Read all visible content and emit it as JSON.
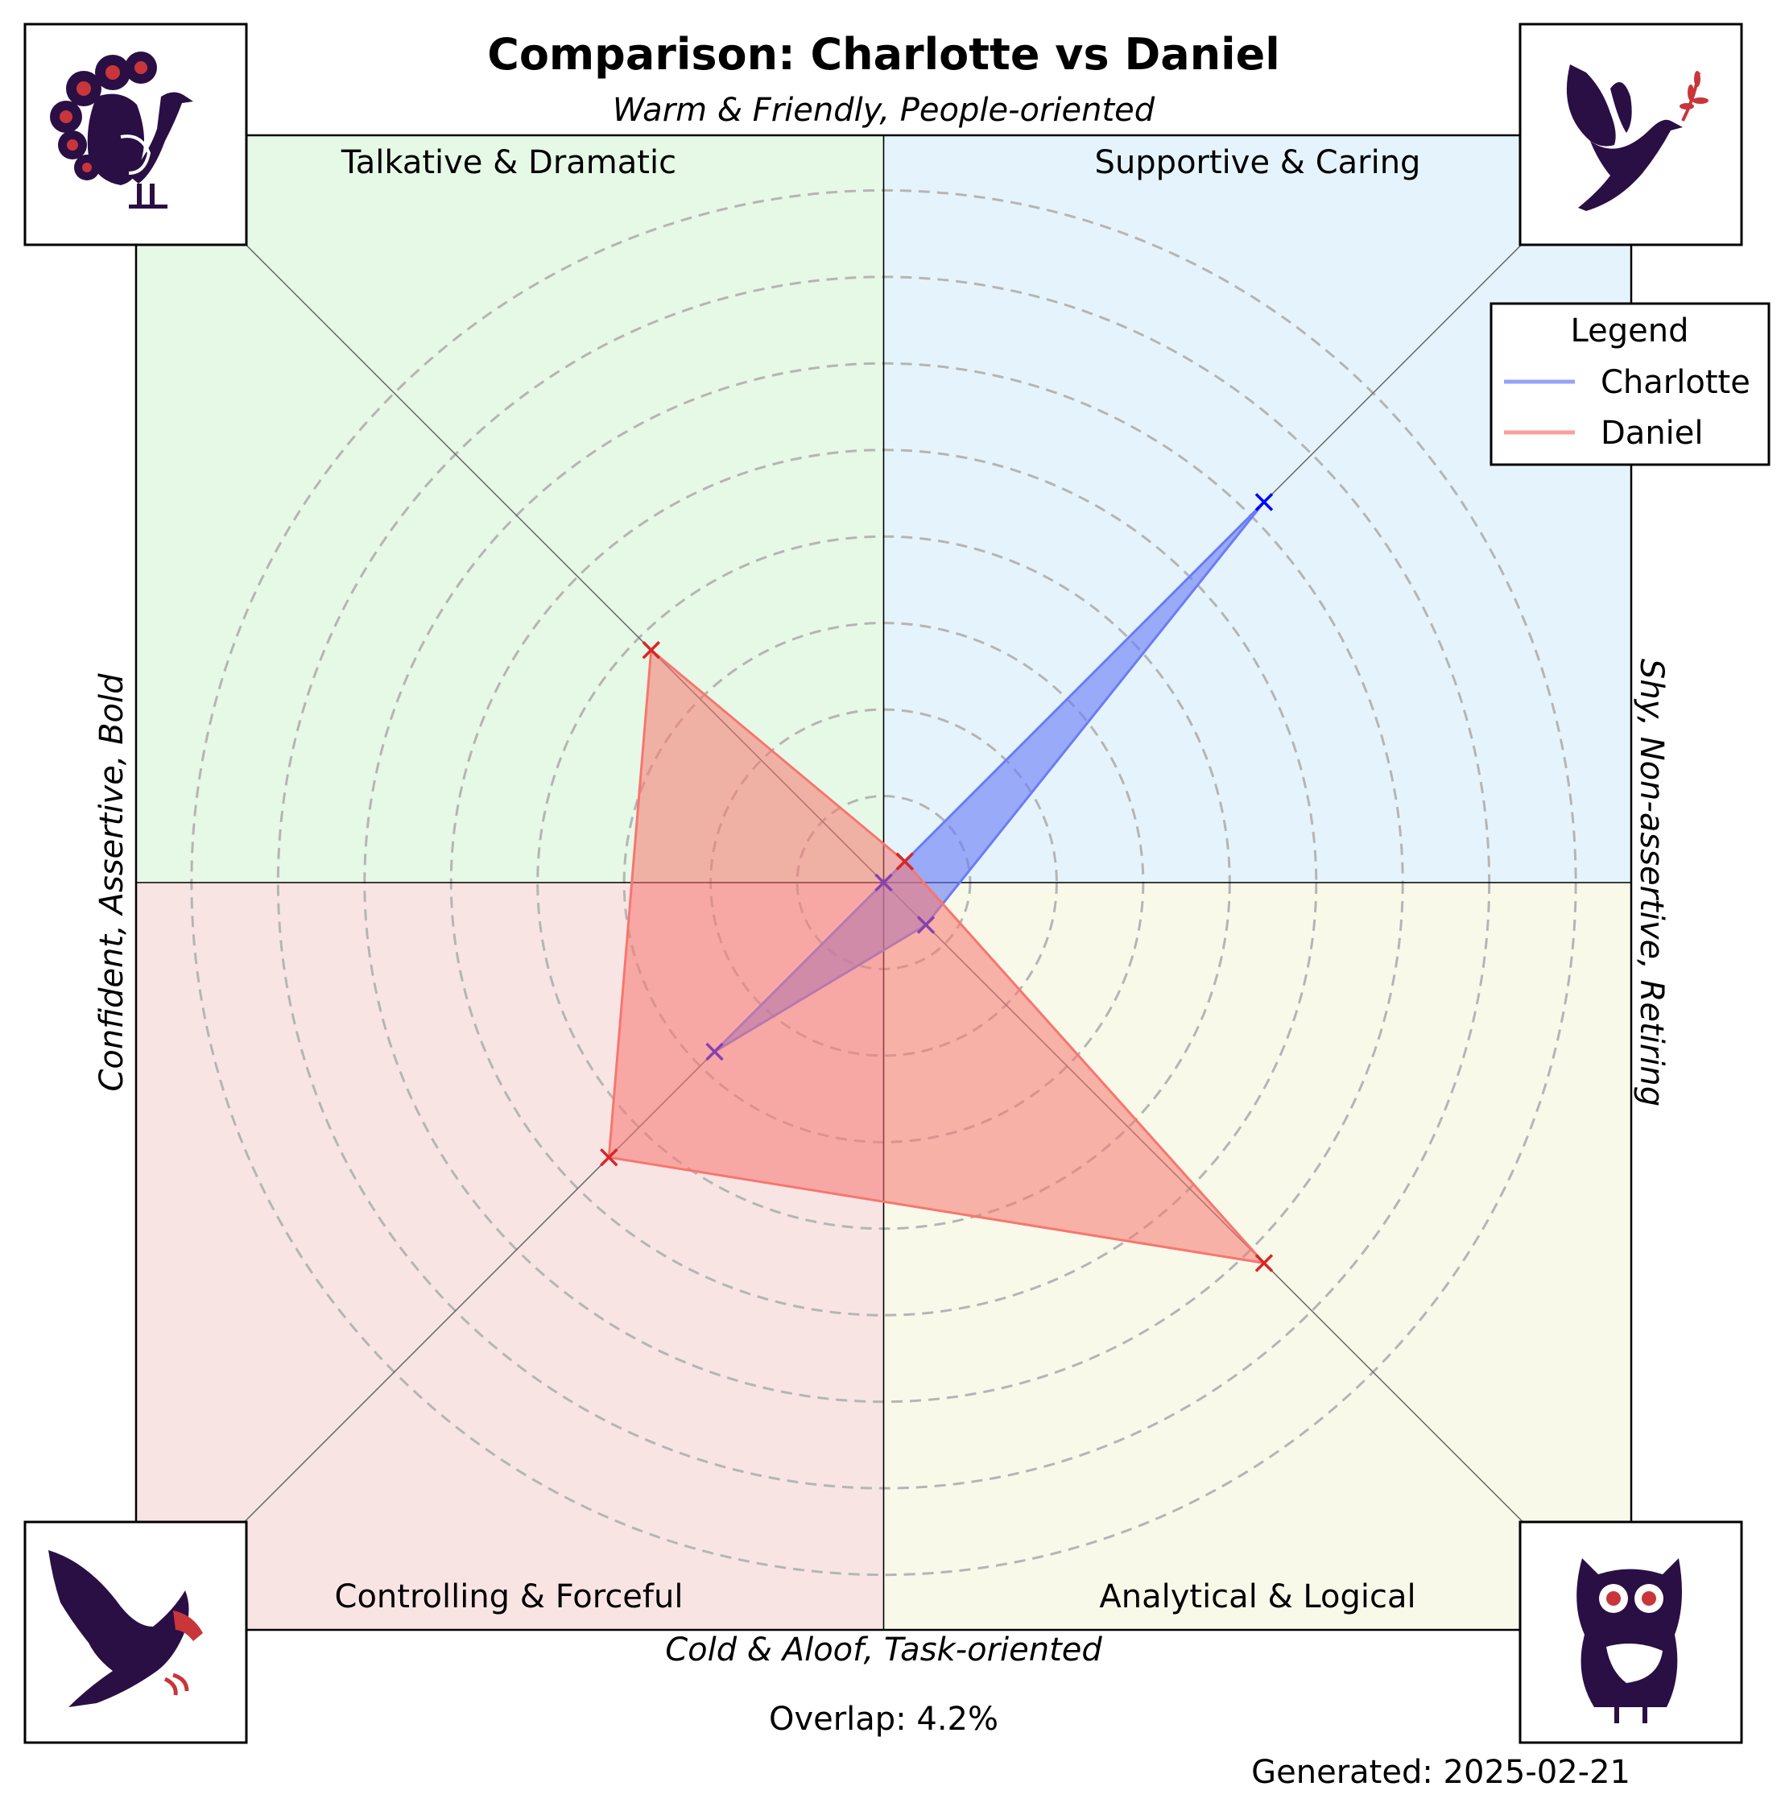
{
  "chart_data": {
    "type": "radar",
    "title": "Comparison: Charlotte vs Daniel",
    "axes": {
      "top": "Warm & Friendly, People-oriented",
      "bottom": "Cold & Aloof, Task-oriented",
      "left": "Confident, Assertive, Bold",
      "right": "Shy, Non-assertive, Retiring"
    },
    "quadrants": [
      {
        "label": "Talkative & Dramatic",
        "color": "#e6f8e6",
        "icon": "peacock-icon"
      },
      {
        "label": "Supportive & Caring",
        "color": "#e5f4fc",
        "icon": "dove-icon"
      },
      {
        "label": "Controlling & Forceful",
        "color": "#f9e4e4",
        "icon": "eagle-icon"
      },
      {
        "label": "Analytical & Logical",
        "color": "#f9f9ea",
        "icon": "owl-icon"
      }
    ],
    "spoke_order": [
      "Supportive & Caring",
      "Talkative & Dramatic",
      "Controlling & Forceful",
      "Analytical & Logical"
    ],
    "rmax": 1.0,
    "grid": true,
    "series": [
      {
        "name": "Charlotte",
        "color": "#0000ff",
        "fill": "#6b7cf5",
        "values": [
          0.72,
          0.0,
          0.32,
          0.08
        ]
      },
      {
        "name": "Daniel",
        "color": "#d62728",
        "fill": "#f7766f",
        "values": [
          0.04,
          0.44,
          0.52,
          0.72
        ]
      }
    ],
    "legend": {
      "title": "Legend",
      "position": "top-right"
    },
    "overlap_text": "Overlap: 4.2%",
    "generated_text": "Generated: 2025-02-21"
  }
}
